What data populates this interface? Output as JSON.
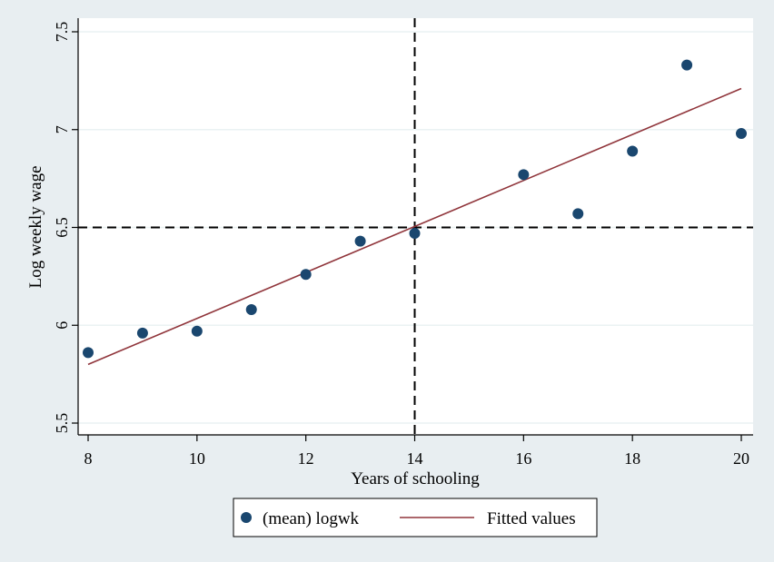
{
  "chart_data": {
    "type": "scatter",
    "xlabel": "Years of schooling",
    "ylabel": "Log weekly wage",
    "xlim": [
      8,
      20
    ],
    "ylim": [
      5.5,
      7.5
    ],
    "xticks": [
      8,
      10,
      12,
      14,
      16,
      18,
      20
    ],
    "yticks": [
      5.5,
      6,
      6.5,
      7,
      7.5
    ],
    "ytick_labels": [
      "5.5",
      "6",
      "6.5",
      "7",
      "7.5"
    ],
    "grid": true,
    "legend_position": "bottom",
    "reference_lines": {
      "x": 14,
      "y": 6.5
    },
    "series": [
      {
        "name": "(mean) logwk",
        "kind": "scatter",
        "color": "#1a476f",
        "x": [
          8,
          9,
          10,
          11,
          12,
          13,
          14,
          16,
          17,
          18,
          19,
          20
        ],
        "y": [
          5.86,
          5.96,
          5.97,
          6.08,
          6.26,
          6.43,
          6.47,
          6.77,
          6.57,
          6.89,
          7.33,
          6.98
        ]
      },
      {
        "name": "Fitted values",
        "kind": "line",
        "color": "#90353b",
        "x": [
          8,
          20
        ],
        "y": [
          5.8,
          7.21
        ]
      }
    ]
  }
}
